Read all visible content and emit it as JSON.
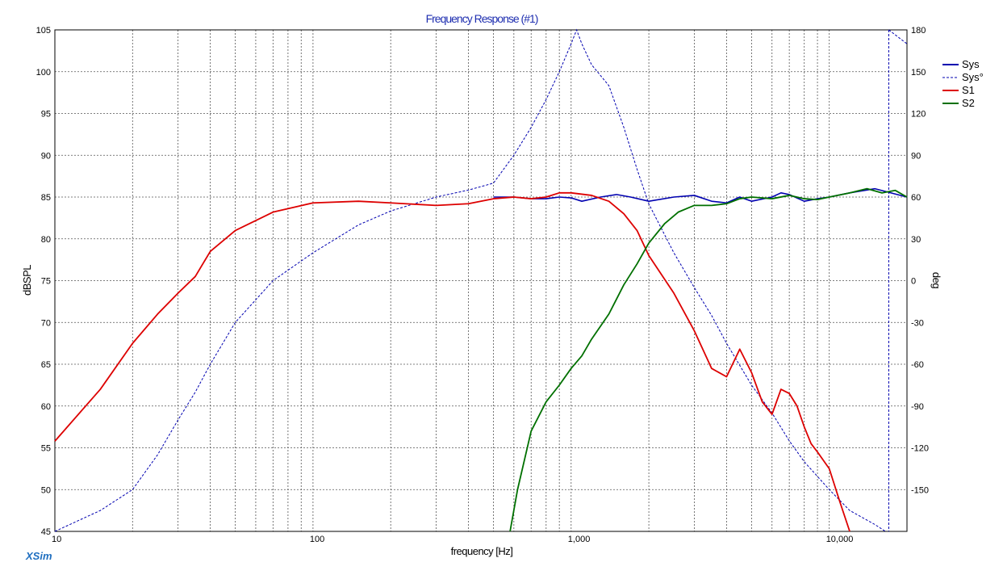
{
  "chart_data": {
    "type": "line",
    "title": "Frequency Response (#1)",
    "xlabel": "frequency [Hz]",
    "ylabel": "dBSPL",
    "y2label": "deg",
    "x_scale": "log",
    "xlim": [
      10,
      20000
    ],
    "ylim": [
      45,
      105
    ],
    "y2lim": [
      -180,
      180
    ],
    "x_tick_values": [
      10,
      100,
      1000,
      10000
    ],
    "x_tick_labels": [
      "10",
      "100",
      "1,000",
      "10,000"
    ],
    "y_tick_labels": [
      "105",
      "100",
      "95",
      "90",
      "85",
      "80",
      "75",
      "70",
      "65",
      "60",
      "55",
      "50",
      "45"
    ],
    "y2_tick_labels": [
      "180",
      "150",
      "120",
      "90",
      "60",
      "30",
      "0",
      "-30",
      "-60",
      "-90",
      "-120",
      "-150"
    ],
    "grid": true,
    "legend_position": "top-right",
    "brand": "XSim",
    "colors": {
      "sys": "#0000b0",
      "s1": "#dd0000",
      "s2": "#007000",
      "title": "#1f2fb0",
      "grid": "#555555",
      "brand": "#1f6fc0"
    },
    "series": [
      {
        "name": "Sys",
        "axis": "left",
        "style": "solid",
        "x": [
          500,
          600,
          700,
          800,
          900,
          1000,
          1100,
          1300,
          1500,
          1700,
          2000,
          2500,
          3000,
          3500,
          4000,
          4500,
          5000,
          6000,
          6500,
          7000,
          8000,
          9000,
          10000,
          12000,
          15000,
          20000
        ],
        "values": [
          85.0,
          85.0,
          84.8,
          84.8,
          85.0,
          84.9,
          84.5,
          85.0,
          85.3,
          85.0,
          84.5,
          85.0,
          85.2,
          84.5,
          84.3,
          85.0,
          84.5,
          85.0,
          85.5,
          85.3,
          84.5,
          84.8,
          85.0,
          85.5,
          86.0,
          85.0
        ]
      },
      {
        "name": "Sys°",
        "axis": "right",
        "style": "dotted",
        "x": [
          10,
          15,
          20,
          25,
          30,
          35,
          40,
          50,
          70,
          100,
          150,
          200,
          300,
          400,
          500,
          600,
          700,
          800,
          900,
          1000,
          1050,
          1100,
          1200,
          1400,
          1600,
          1800,
          2000,
          2500,
          3000,
          3500,
          4000,
          5000,
          6000,
          7000,
          8000,
          10000,
          12000,
          15000,
          16500,
          17000,
          20000
        ],
        "values": [
          -180,
          -165,
          -150,
          -125,
          -100,
          -80,
          -60,
          -30,
          0,
          20,
          40,
          50,
          60,
          65,
          70,
          90,
          110,
          130,
          150,
          170,
          180,
          170,
          155,
          140,
          110,
          80,
          55,
          20,
          -5,
          -25,
          -45,
          -75,
          -95,
          -115,
          -130,
          -150,
          -165,
          -175,
          -180,
          180,
          170
        ]
      },
      {
        "name": "S1",
        "axis": "left",
        "style": "solid",
        "x": [
          10,
          15,
          20,
          25,
          30,
          35,
          40,
          50,
          70,
          100,
          150,
          200,
          300,
          400,
          500,
          600,
          700,
          800,
          900,
          1000,
          1200,
          1400,
          1600,
          1800,
          2000,
          2500,
          3000,
          3500,
          4000,
          4500,
          5000,
          5500,
          6000,
          6500,
          7000,
          7500,
          8000,
          8500,
          9000,
          10000,
          11000,
          12000
        ],
        "values": [
          55.8,
          62.0,
          67.5,
          71.0,
          73.5,
          75.5,
          78.5,
          81.0,
          83.2,
          84.3,
          84.5,
          84.3,
          84.0,
          84.2,
          84.8,
          85.0,
          84.8,
          85.0,
          85.5,
          85.5,
          85.2,
          84.5,
          83.0,
          81.0,
          78.0,
          73.5,
          69.0,
          64.5,
          63.5,
          66.8,
          64.0,
          60.5,
          59.0,
          62.0,
          61.5,
          60.0,
          57.5,
          55.5,
          54.5,
          52.5,
          48.5,
          45.0
        ]
      },
      {
        "name": "S2",
        "axis": "left",
        "style": "solid",
        "x": [
          580,
          620,
          700,
          800,
          900,
          1000,
          1100,
          1200,
          1400,
          1600,
          1800,
          2000,
          2300,
          2600,
          3000,
          3500,
          4000,
          4500,
          5000,
          6000,
          7000,
          8000,
          9000,
          10000,
          12000,
          14000,
          16000,
          18000,
          20000
        ],
        "values": [
          45.0,
          50.0,
          57.0,
          60.5,
          62.5,
          64.5,
          66.0,
          68.0,
          71.0,
          74.5,
          77.0,
          79.5,
          81.8,
          83.2,
          84.0,
          84.0,
          84.2,
          84.8,
          85.0,
          84.8,
          85.2,
          84.8,
          84.7,
          85.0,
          85.5,
          86.0,
          85.5,
          85.8,
          85.0
        ]
      }
    ]
  }
}
